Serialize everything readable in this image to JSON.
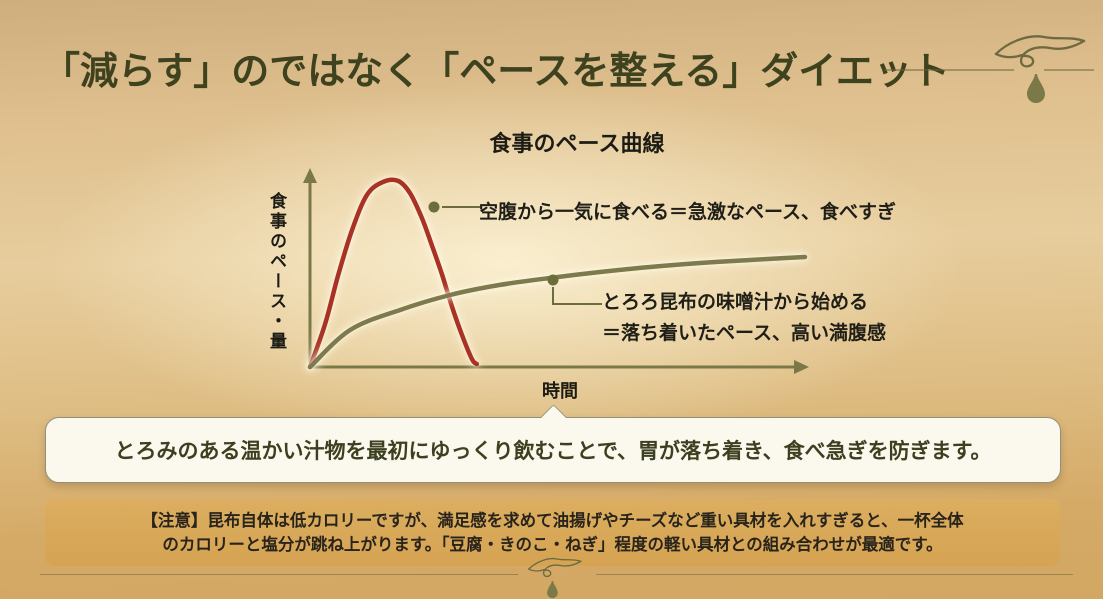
{
  "header": {
    "title": "「減らす」のではなく「ペースを整える」ダイエット"
  },
  "chart": {
    "title": "食事のペース曲線",
    "y_axis_label": "食事のペース・量",
    "x_axis_label": "時間",
    "annotations": {
      "fast": "空腹から一気に食べる＝急激なペース、食べすぎ",
      "slow_line1": "とろろ昆布の味噌汁から始める",
      "slow_line2": "＝落ち着いたペース、高い満腹感"
    }
  },
  "chart_data": {
    "type": "line",
    "title": "食事のペース曲線",
    "xlabel": "時間",
    "ylabel": "食事のペース・量",
    "axes_numeric": false,
    "axes_style": "conceptual arrows, no ticks, no gridlines",
    "legend_position": "inline annotations with leader lines",
    "xlim": [
      0,
      1
    ],
    "ylim": [
      0,
      1
    ],
    "series": [
      {
        "name": "空腹から一気に食べる＝急激なペース、食べすぎ",
        "color": "#a93226",
        "shape": "sharp early peak then rapid fall",
        "x": [
          0,
          0.03,
          0.057,
          0.085,
          0.115,
          0.147,
          0.178,
          0.202,
          0.226,
          0.246,
          0.267,
          0.287,
          0.307,
          0.327,
          0.337
        ],
        "y": [
          0,
          0.225,
          0.492,
          0.733,
          0.92,
          0.989,
          0.995,
          0.93,
          0.797,
          0.652,
          0.492,
          0.321,
          0.171,
          0.043,
          0.016
        ]
      },
      {
        "name": "とろろ昆布の味噌汁から始める＝落ち着いたペース、高い満腹感",
        "color": "#7d7a4d",
        "shape": "gradual saturating rise",
        "x": [
          0,
          0.081,
          0.182,
          0.283,
          0.384,
          0.485,
          0.586,
          0.687,
          0.788,
          0.889,
          1.0
        ],
        "y": [
          0,
          0.198,
          0.305,
          0.385,
          0.439,
          0.476,
          0.508,
          0.535,
          0.556,
          0.572,
          0.588
        ]
      }
    ]
  },
  "callout": {
    "text": "とろみのある温かい汁物を最初にゆっくり飲むことで、胃が落ち着き、食べ急ぎを防ぎます。"
  },
  "note": {
    "line1": "【注意】昆布自体は低カロリーですが、満足感を求めて油揚げやチーズなど重い具材を入れすぎると、一杯全体",
    "line2": "のカロリーと塩分が跳ね上がります。「豆腐・きのこ・ねぎ」程度の軽い具材との組み合わせが最適です。"
  },
  "icons": {
    "top_right": "hand-drop-icon",
    "bottom_center": "hand-drop-icon"
  },
  "colors": {
    "title_green": "#3e421e",
    "curve_red": "#a93226",
    "curve_olive": "#7d7a4d",
    "axis_olive": "#7b7847",
    "connector_olive": "#6d6d3c",
    "callout_bg": "#fbf8ed",
    "callout_text": "#3c4020",
    "note_bg": "#d7a757",
    "background_tan": "#e2c390"
  }
}
